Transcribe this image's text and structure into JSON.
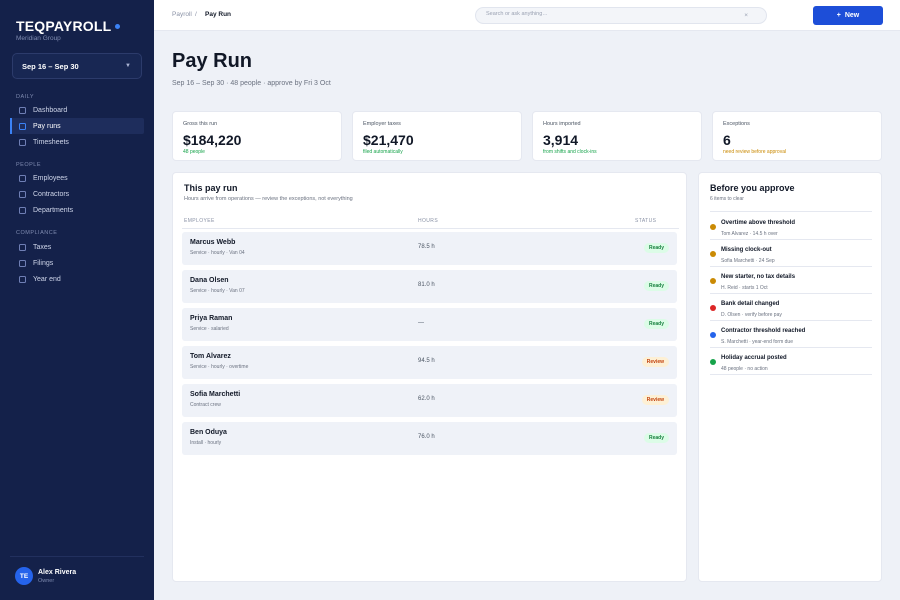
{
  "sidebar": {
    "brand": "TEQPAYROLL",
    "org": "Meridian Group",
    "period": "Sep 16 – Sep 30",
    "sections": {
      "daily": "DAILY",
      "people": "PEOPLE",
      "compliance": "COMPLIANCE"
    },
    "items": {
      "dashboard": "Dashboard",
      "payruns": "Pay runs",
      "timesheets": "Timesheets",
      "employees": "Employees",
      "contractors": "Contractors",
      "departments": "Departments",
      "taxes": "Taxes",
      "filings": "Filings",
      "yearend": "Year end"
    },
    "active_item": "Pay runs",
    "user": {
      "initials": "TE",
      "name": "Alex Rivera",
      "role": "Owner"
    }
  },
  "topbar": {
    "breadcrumb_parent": "Payroll",
    "breadcrumb_sep": "/",
    "breadcrumb_current": "Pay Run",
    "search_placeholder": "Search or ask anything…",
    "clear_glyph": "×",
    "new_label": "New",
    "new_glyph": "+"
  },
  "page": {
    "title": "Pay Run",
    "subtitle": "Sep 16 – Sep 30 · 48 people · approve by Fri 3 Oct"
  },
  "stats": [
    {
      "label": "Gross this run",
      "value": "$184,220",
      "note": "48 people",
      "tone": "good"
    },
    {
      "label": "Employer taxes",
      "value": "$21,470",
      "note": "filed automatically",
      "tone": "good"
    },
    {
      "label": "Hours imported",
      "value": "3,914",
      "note": "from shifts and clock-ins",
      "tone": "good"
    },
    {
      "label": "Exceptions",
      "value": "6",
      "note": "need review before approval",
      "tone": "warn"
    }
  ],
  "payrun": {
    "title": "This pay run",
    "subtitle": "Hours arrive from operations — review the exceptions, not everything",
    "headers": {
      "employee": "EMPLOYEE",
      "hours": "HOURS",
      "status": "STATUS"
    },
    "rows": [
      {
        "name": "Marcus Webb",
        "meta": "Service · hourly · Van 04",
        "hours": "78.5 h",
        "status": "Ready"
      },
      {
        "name": "Dana Olsen",
        "meta": "Service · hourly · Van 07",
        "hours": "81.0 h",
        "status": "Ready"
      },
      {
        "name": "Priya Raman",
        "meta": "Service · salaried",
        "hours": "—",
        "status": "Ready"
      },
      {
        "name": "Tom Alvarez",
        "meta": "Service · hourly · overtime",
        "hours": "94.5 h",
        "status": "Review"
      },
      {
        "name": "Sofia Marchetti",
        "meta": "Contract crew",
        "hours": "62.0 h",
        "status": "Review"
      },
      {
        "name": "Ben Oduya",
        "meta": "Install · hourly",
        "hours": "76.0 h",
        "status": "Ready"
      }
    ]
  },
  "approve": {
    "title": "Before you approve",
    "subtitle": "6 items to clear",
    "items": [
      {
        "title": "Overtime above threshold",
        "detail": "Tom Alvarez · 14.5 h over",
        "color": "#ca8a04"
      },
      {
        "title": "Missing clock-out",
        "detail": "Sofia Marchetti · 24 Sep",
        "color": "#ca8a04"
      },
      {
        "title": "New starter, no tax details",
        "detail": "H. Reid · starts 1 Oct",
        "color": "#ca8a04"
      },
      {
        "title": "Bank detail changed",
        "detail": "D. Olsen · verify before pay",
        "color": "#dc2626"
      },
      {
        "title": "Contractor threshold reached",
        "detail": "S. Marchetti · year-end form due",
        "color": "#2563eb"
      },
      {
        "title": "Holiday accrual posted",
        "detail": "48 people · no action",
        "color": "#16a34a"
      }
    ]
  },
  "colors": {
    "sidebar_bg": "#14214a",
    "accent": "#1d4ed8",
    "ready": "#15803d",
    "review": "#c2410c",
    "warn": "#ca8a04"
  }
}
